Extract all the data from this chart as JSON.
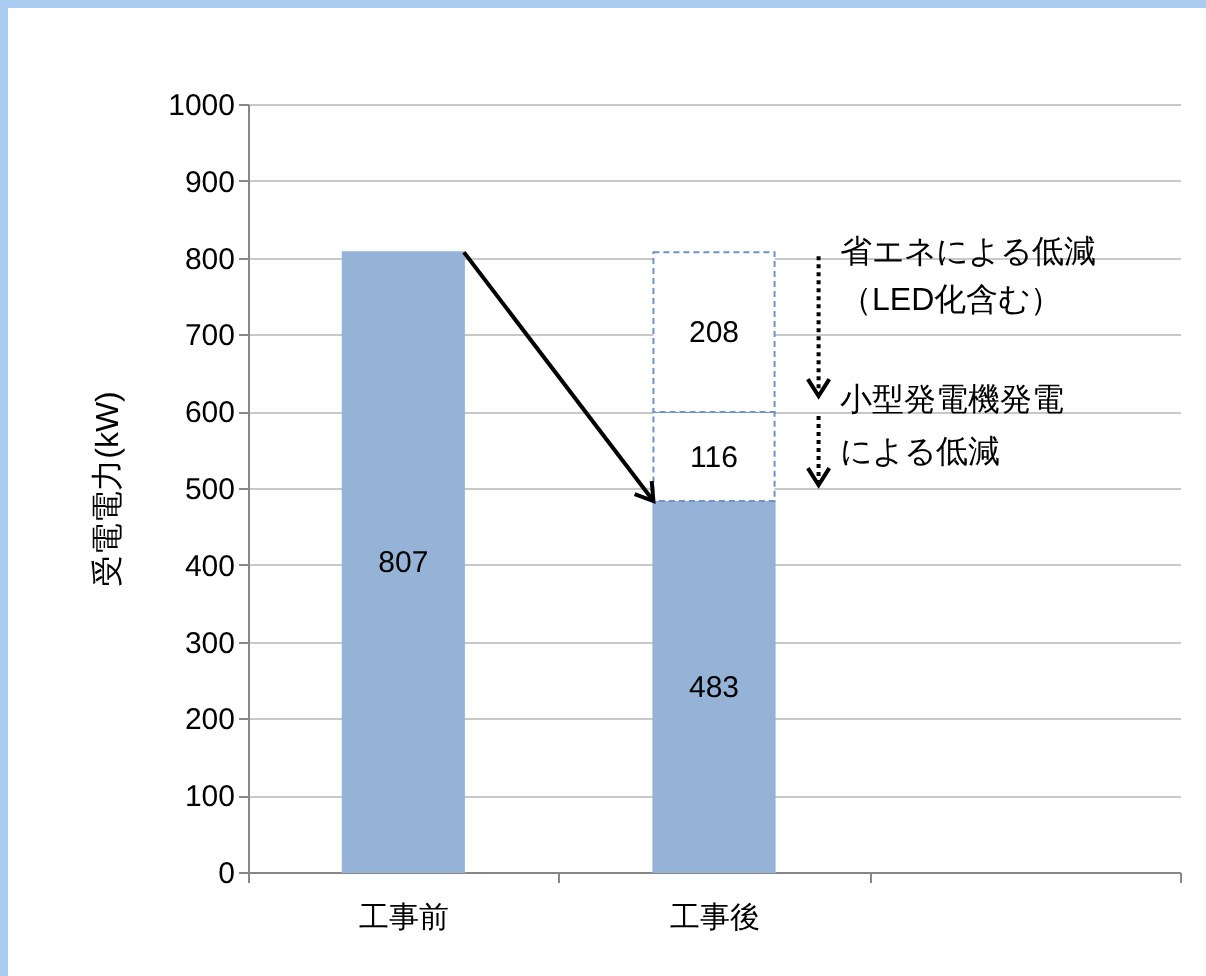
{
  "chart_data": {
    "type": "bar",
    "stacked": true,
    "ylabel": "受電電力(kW)",
    "categories": [
      "工事前",
      "工事後",
      null
    ],
    "series": [
      {
        "color": "#95b3d7",
        "values": [
          807,
          483,
          null
        ]
      },
      {
        "color": "#ffffff",
        "line_style": "dashed",
        "values": [
          null,
          116,
          null
        ]
      },
      {
        "color": "#ffffff",
        "line_style": "dashed",
        "values": [
          null,
          208,
          null
        ]
      }
    ],
    "ylim": [
      0,
      1000
    ],
    "yticks": [
      0,
      100,
      200,
      300,
      400,
      500,
      600,
      700,
      800,
      900,
      1000
    ],
    "grid": "y",
    "data_labels": true,
    "annotations": [
      "省エネによる低減",
      "（LED化含む）",
      "小型発電機発電",
      "による低減"
    ]
  }
}
